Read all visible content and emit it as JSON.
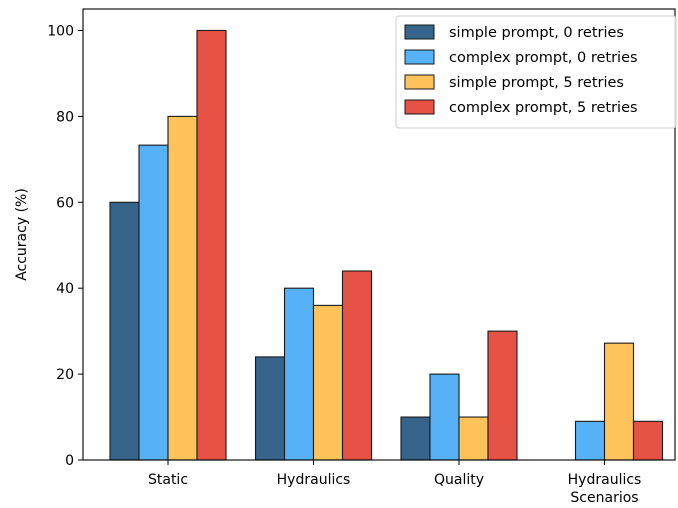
{
  "chart_data": {
    "type": "bar",
    "title": "",
    "xlabel": "",
    "ylabel": "Accuracy (%)",
    "ylim": [
      0,
      105
    ],
    "yticks": [
      0,
      20,
      40,
      60,
      80,
      100
    ],
    "grid": false,
    "legend_position": "top-right",
    "categories": [
      [
        "Static"
      ],
      [
        "Hydraulics"
      ],
      [
        "Quality"
      ],
      [
        "Hydraulics",
        "Scenarios"
      ]
    ],
    "series": [
      {
        "name": "simple prompt, 0 retries",
        "color": "#36648b",
        "values": [
          60,
          24,
          10,
          0
        ]
      },
      {
        "name": "complex prompt, 0 retries",
        "color": "#56b1f7",
        "values": [
          73.3,
          40,
          20,
          9
        ]
      },
      {
        "name": "simple prompt, 5 retries",
        "color": "#fec35a",
        "values": [
          80,
          36,
          10,
          27.2
        ]
      },
      {
        "name": "complex prompt, 5 retries",
        "color": "#e65245",
        "values": [
          100,
          44,
          30,
          9
        ]
      }
    ]
  }
}
